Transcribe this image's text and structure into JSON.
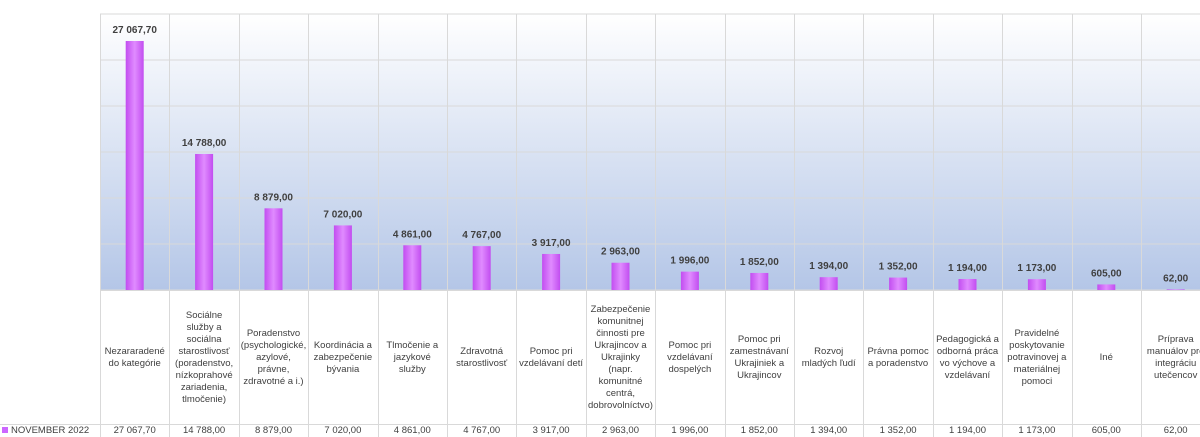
{
  "chart_data": {
    "type": "bar",
    "categories": [
      "Nezararadené do kategórie",
      "Sociálne služby a sociálna starostlivosť (poradenstvo, nízkoprahové zariadenia, tlmočenie)",
      "Poradenstvo (psychologické, azylové, právne, zdravotné a i.)",
      "Koordinácia a zabezpečenie bývania",
      "Tlmočenie a jazykové služby",
      "Zdravotná starostlivosť",
      "Pomoc pri vzdelávaní detí",
      "Zabezpečenie komunitnej činnosti pre Ukrajincov a Ukrajinky (napr. komunitné centrá, dobrovolníctvo)",
      "Pomoc pri vzdelávaní dospelých",
      "Pomoc pri zamestnávaní Ukrajiniek a Ukrajincov",
      "Rozvoj mladých ľudí",
      "Právna pomoc a poradenstvo",
      "Pedagogická a odborná práca vo výchove a vzdelávaní",
      "Pravidelné poskytovanie potravinovej a materiálnej pomoci",
      "Iné",
      "Príprava manuálov pre integráciu utečencov"
    ],
    "series": [
      {
        "name": "NOVEMBER 2022",
        "color": "#cc66ff",
        "values": [
          27067.7,
          14788,
          8879,
          7020,
          4861,
          4767,
          3917,
          2963,
          1996,
          1852,
          1394,
          1352,
          1194,
          1173,
          605,
          62
        ],
        "value_labels": [
          "27 067,70",
          "14 788,00",
          "8 879,00",
          "7 020,00",
          "4 861,00",
          "4 767,00",
          "3 917,00",
          "2 963,00",
          "1 996,00",
          "1 852,00",
          "1 394,00",
          "1 352,00",
          "1 194,00",
          "1 173,00",
          "605,00",
          "62,00"
        ]
      }
    ],
    "ylim": [
      0,
      30000
    ],
    "yticks": [
      0,
      5000,
      10000,
      15000,
      20000,
      25000,
      30000
    ],
    "grid": true
  }
}
